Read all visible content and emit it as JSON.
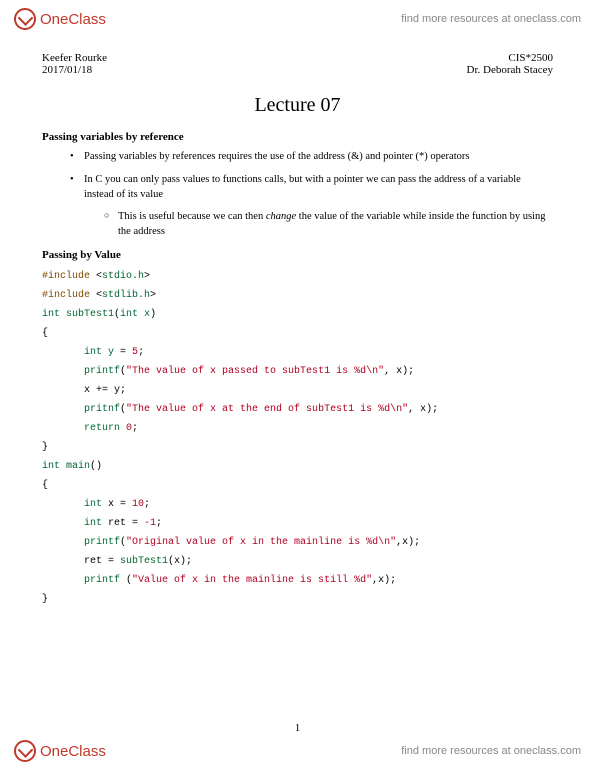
{
  "watermark": {
    "logo_text": "OneClass",
    "link_text": "find more resources at oneclass.com"
  },
  "header": {
    "author": "Keefer Rourke",
    "course": "CIS*2500",
    "date": "2017/01/18",
    "instructor": "Dr. Deborah Stacey"
  },
  "title": "Lecture 07",
  "section1": {
    "heading": "Passing variables by reference",
    "bullet1": "Passing variables by references requires the use of the address (&) and pointer (*) operators",
    "bullet2": "In C you can only pass values to functions calls, but with a pointer we can pass the address of a variable instead of its value",
    "sub1_pre": "This is useful because we can then ",
    "sub1_em": "change",
    "sub1_post": " the value of the variable while inside the function by using the address"
  },
  "section2": {
    "heading": "Passing by Value"
  },
  "code": {
    "l1_a": "#include",
    "l1_b": " <",
    "l1_c": "stdio.h",
    "l1_d": ">",
    "l2_a": "#include",
    "l2_b": " <",
    "l2_c": "stdlib.h",
    "l2_d": ">",
    "l3_a": "int ",
    "l3_b": "subTest1",
    "l3_c": "(",
    "l3_d": "int ",
    "l3_e": "x",
    "l3_f": ")",
    "l4": "{",
    "l5_a": "int ",
    "l5_b": "y ",
    "l5_c": "= ",
    "l5_d": "5",
    "l5_e": ";",
    "l6_a": "printf",
    "l6_b": "(",
    "l6_c": "\"The value of x passed to subTest1 is %d\\n\"",
    "l6_d": ", x);",
    "l7": "x += y;",
    "l8_a": "pritnf",
    "l8_b": "(",
    "l8_c": "\"The value of x at the end of subTest1 is %d\\n\"",
    "l8_d": ", x);",
    "l9_a": "return ",
    "l9_b": "0",
    "l9_c": ";",
    "l10": "}",
    "l11_a": "int ",
    "l11_b": "main",
    "l11_c": "()",
    "l12": "{",
    "l13_a": "int ",
    "l13_b": "x = ",
    "l13_c": "10",
    "l13_d": ";",
    "l14_a": "int ",
    "l14_b": "ret = ",
    "l14_c": "-1",
    "l14_d": ";",
    "l15_a": "printf",
    "l15_b": "(",
    "l15_c": "\"Original value of x in the mainline is %d\\n\"",
    "l15_d": ",x);",
    "l16_a": "ret = ",
    "l16_b": "subTest1",
    "l16_c": "(x);",
    "l17_a": "printf",
    "l17_b": " (",
    "l17_c": "\"Value of x in the mainline is still %d\"",
    "l17_d": ",x);",
    "l18": "}"
  },
  "page_number": "1",
  "colors": {
    "brand": "#c0392b",
    "preproc": "#7a4a00",
    "string": "#b00020",
    "keyword": "#006633",
    "background": "#ffffff",
    "text": "#000000",
    "link_gray": "#888888"
  },
  "typography": {
    "body_font": "Georgia",
    "code_font": "Courier New",
    "title_fontsize_pt": 20,
    "body_fontsize_pt": 11,
    "code_fontsize_pt": 10
  }
}
